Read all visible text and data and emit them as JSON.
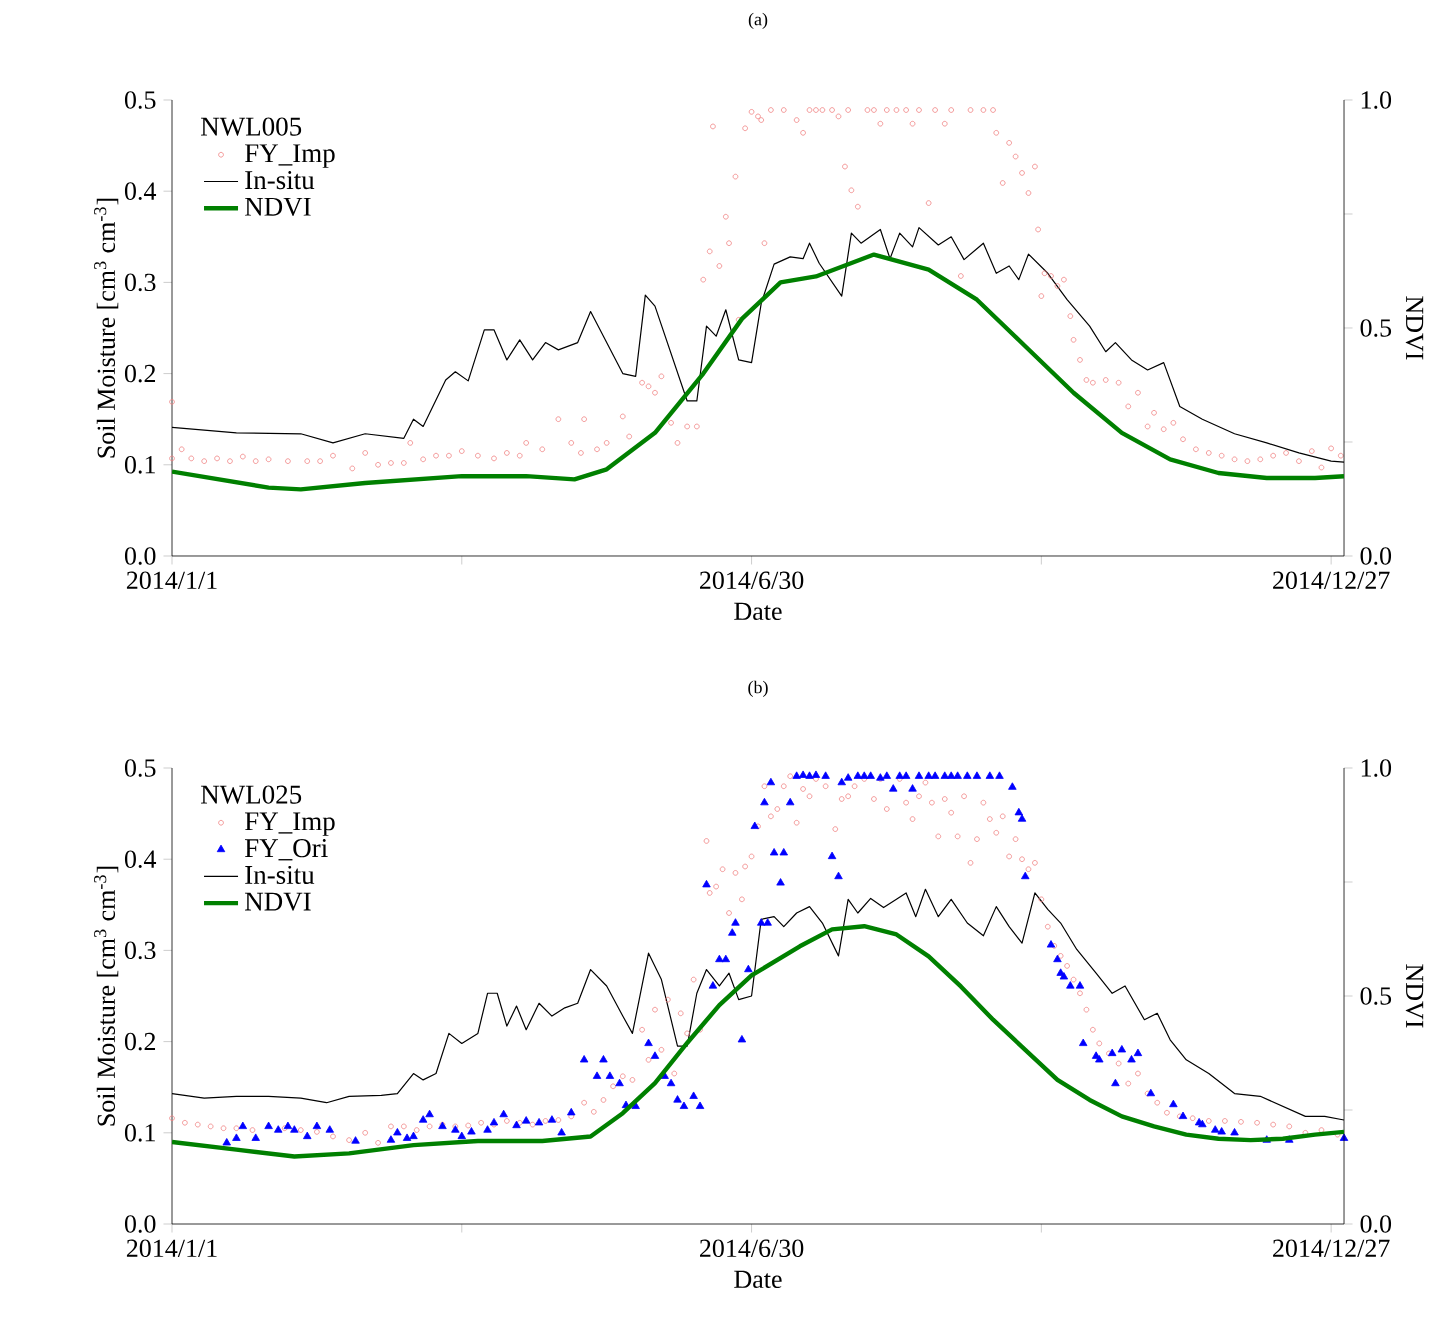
{
  "chart_data": [
    {
      "type": "line",
      "title": "(a)",
      "xlabel": "Date",
      "ylabel": "Soil Moisture [cm$^{3}$ cm$^{-3}$]",
      "y2label": "NDVI",
      "legend_title": "NWL005",
      "legend": "top left",
      "xlim": [
        "2014-01-01",
        "2014-12-31"
      ],
      "xticks": [
        {
          "value": "2014-01-01",
          "label": "2014/1/1"
        },
        {
          "value": "2014-04-01",
          "label": null
        },
        {
          "value": "2014-06-30",
          "label": "2014/6/30"
        },
        {
          "value": "2014-09-28",
          "label": null
        },
        {
          "value": "2014-12-27",
          "label": "2014/12/27"
        }
      ],
      "ylim": [
        0,
        0.5
      ],
      "yticks": [
        {
          "value": 0,
          "label": "0.0"
        },
        0.1,
        0.2,
        0.3,
        0.4,
        0.5
      ],
      "y2lim": [
        0,
        1
      ],
      "y2ticks": [
        {
          "value": 0,
          "label": "0.0"
        },
        {
          "value": 0.25,
          "label": null
        },
        0.5,
        {
          "value": 0.75,
          "label": null
        },
        {
          "value": 1,
          "label": "1.0"
        }
      ],
      "series": [
        {
          "name": "FY_Imp",
          "type": "scatter",
          "marker": "circle",
          "color": "#f08080",
          "x": [
            "2014-01-01",
            "2014-01-01",
            "2014-01-04",
            "2014-01-07",
            "2014-01-11",
            "2014-01-15",
            "2014-01-19",
            "2014-01-23",
            "2014-01-27",
            "2014-01-31",
            "2014-02-06",
            "2014-02-12",
            "2014-02-16",
            "2014-02-20",
            "2014-02-26",
            "2014-03-02",
            "2014-03-06",
            "2014-03-10",
            "2014-03-14",
            "2014-03-16",
            "2014-03-20",
            "2014-03-24",
            "2014-03-28",
            "2014-04-01",
            "2014-04-06",
            "2014-04-11",
            "2014-04-15",
            "2014-04-19",
            "2014-04-21",
            "2014-04-26",
            "2014-05-01",
            "2014-05-05",
            "2014-05-08",
            "2014-05-09",
            "2014-05-13",
            "2014-05-16",
            "2014-05-21",
            "2014-05-23",
            "2014-05-27",
            "2014-05-29",
            "2014-05-31",
            "2014-06-02",
            "2014-06-05",
            "2014-06-07",
            "2014-06-10",
            "2014-06-13",
            "2014-06-15",
            "2014-06-17",
            "2014-06-18",
            "2014-06-20",
            "2014-06-22",
            "2014-06-23",
            "2014-06-25",
            "2014-06-26",
            "2014-06-28",
            "2014-06-30",
            "2014-07-02",
            "2014-07-03",
            "2014-07-04",
            "2014-07-06",
            "2014-07-10",
            "2014-07-14",
            "2014-07-16",
            "2014-07-18",
            "2014-07-20",
            "2014-07-22",
            "2014-07-25",
            "2014-07-27",
            "2014-07-29",
            "2014-07-30",
            "2014-07-31",
            "2014-08-02",
            "2014-08-05",
            "2014-08-07",
            "2014-08-09",
            "2014-08-11",
            "2014-08-14",
            "2014-08-17",
            "2014-08-19",
            "2014-08-21",
            "2014-08-24",
            "2014-08-26",
            "2014-08-29",
            "2014-08-31",
            "2014-09-03",
            "2014-09-06",
            "2014-09-10",
            "2014-09-13",
            "2014-09-14",
            "2014-09-16",
            "2014-09-18",
            "2014-09-20",
            "2014-09-22",
            "2014-09-24",
            "2014-09-26",
            "2014-09-27",
            "2014-09-28",
            "2014-09-29",
            "2014-10-01",
            "2014-10-03",
            "2014-10-05",
            "2014-10-07",
            "2014-10-08",
            "2014-10-10",
            "2014-10-12",
            "2014-10-14",
            "2014-10-18",
            "2014-10-22",
            "2014-10-25",
            "2014-10-28",
            "2014-10-31",
            "2014-11-02",
            "2014-11-05",
            "2014-11-08",
            "2014-11-11",
            "2014-11-15",
            "2014-11-19",
            "2014-11-23",
            "2014-11-27",
            "2014-12-01",
            "2014-12-05",
            "2014-12-09",
            "2014-12-13",
            "2014-12-17",
            "2014-12-21",
            "2014-12-24",
            "2014-12-27",
            "2014-12-30"
          ],
          "values": [
            0.169,
            0.107,
            0.117,
            0.107,
            0.104,
            0.107,
            0.104,
            0.109,
            0.104,
            0.106,
            0.104,
            0.104,
            0.104,
            0.11,
            0.096,
            0.113,
            0.1,
            0.102,
            0.102,
            0.124,
            0.106,
            0.11,
            0.11,
            0.115,
            0.11,
            0.107,
            0.113,
            0.11,
            0.124,
            0.117,
            0.15,
            0.124,
            0.113,
            0.15,
            0.117,
            0.124,
            0.153,
            0.131,
            0.19,
            0.186,
            0.179,
            0.197,
            0.146,
            0.124,
            0.142,
            0.142,
            0.303,
            0.334,
            0.471,
            0.318,
            0.372,
            0.343,
            0.416,
            0.259,
            0.469,
            0.487,
            0.482,
            0.478,
            0.343,
            0.489,
            0.489,
            0.478,
            0.464,
            0.489,
            0.489,
            0.489,
            0.489,
            0.482,
            0.427,
            0.489,
            0.401,
            0.383,
            0.489,
            0.489,
            0.474,
            0.489,
            0.489,
            0.489,
            0.474,
            0.489,
            0.387,
            0.489,
            0.474,
            0.489,
            0.307,
            0.489,
            0.489,
            0.489,
            0.464,
            0.409,
            0.453,
            0.438,
            0.42,
            0.398,
            0.427,
            0.358,
            0.285,
            0.31,
            0.307,
            0.296,
            0.303,
            0.263,
            0.237,
            0.215,
            0.193,
            0.19,
            0.193,
            0.19,
            0.164,
            0.179,
            0.142,
            0.157,
            0.139,
            0.146,
            0.128,
            0.117,
            0.113,
            0.11,
            0.106,
            0.104,
            0.106,
            0.11,
            0.113,
            0.104,
            0.115,
            0.097,
            0.118,
            0.11
          ]
        },
        {
          "name": "In-situ",
          "color": "#000000",
          "x": [
            "2014-01-01",
            "2014-01-21",
            "2014-02-10",
            "2014-02-20",
            "2014-03-02",
            "2014-03-14",
            "2014-03-17",
            "2014-03-20",
            "2014-03-27",
            "2014-03-30",
            "2014-04-03",
            "2014-04-08",
            "2014-04-11",
            "2014-04-15",
            "2014-04-19",
            "2014-04-23",
            "2014-04-27",
            "2014-05-01",
            "2014-05-07",
            "2014-05-11",
            "2014-05-21",
            "2014-05-25",
            "2014-05-28",
            "2014-05-31",
            "2014-06-10",
            "2014-06-13",
            "2014-06-16",
            "2014-06-19",
            "2014-06-22",
            "2014-06-26",
            "2014-06-30",
            "2014-07-03",
            "2014-07-07",
            "2014-07-12",
            "2014-07-16",
            "2014-07-18",
            "2014-07-21",
            "2014-07-28",
            "2014-07-31",
            "2014-08-03",
            "2014-08-09",
            "2014-08-12",
            "2014-08-15",
            "2014-08-19",
            "2014-08-21",
            "2014-08-27",
            "2014-08-31",
            "2014-09-04",
            "2014-09-10",
            "2014-09-14",
            "2014-09-18",
            "2014-09-21",
            "2014-09-24",
            "2014-09-30",
            "2014-10-06",
            "2014-10-13",
            "2014-10-18",
            "2014-10-21",
            "2014-10-26",
            "2014-10-31",
            "2014-11-05",
            "2014-11-10",
            "2014-11-17",
            "2014-11-27",
            "2014-12-07",
            "2014-12-17",
            "2014-12-27",
            "2014-12-31"
          ],
          "values": [
            0.141,
            0.135,
            0.134,
            0.124,
            0.134,
            0.129,
            0.15,
            0.142,
            0.193,
            0.202,
            0.192,
            0.248,
            0.248,
            0.215,
            0.237,
            0.215,
            0.234,
            0.226,
            0.234,
            0.268,
            0.2,
            0.197,
            0.286,
            0.274,
            0.17,
            0.17,
            0.252,
            0.241,
            0.27,
            0.215,
            0.212,
            0.277,
            0.32,
            0.328,
            0.326,
            0.343,
            0.321,
            0.285,
            0.354,
            0.343,
            0.358,
            0.326,
            0.354,
            0.339,
            0.36,
            0.341,
            0.35,
            0.325,
            0.343,
            0.31,
            0.318,
            0.303,
            0.331,
            0.31,
            0.281,
            0.252,
            0.224,
            0.234,
            0.215,
            0.204,
            0.212,
            0.164,
            0.15,
            0.134,
            0.124,
            0.113,
            0.104,
            0.103
          ]
        },
        {
          "name": "NDVI",
          "axis": "y2",
          "color": "#008000",
          "x": [
            "2014-01-01",
            "2014-01-31",
            "2014-02-10",
            "2014-03-02",
            "2014-04-01",
            "2014-04-21",
            "2014-05-06",
            "2014-05-16",
            "2014-05-31",
            "2014-06-15",
            "2014-06-27",
            "2014-07-09",
            "2014-07-20",
            "2014-08-07",
            "2014-08-24",
            "2014-09-08",
            "2014-09-23",
            "2014-10-08",
            "2014-10-23",
            "2014-11-07",
            "2014-11-22",
            "2014-12-07",
            "2014-12-22",
            "2014-12-31"
          ],
          "values": [
            0.185,
            0.15,
            0.146,
            0.16,
            0.175,
            0.175,
            0.168,
            0.19,
            0.27,
            0.4,
            0.52,
            0.6,
            0.613,
            0.661,
            0.628,
            0.562,
            0.46,
            0.358,
            0.27,
            0.212,
            0.182,
            0.171,
            0.171,
            0.175
          ]
        }
      ]
    },
    {
      "type": "line",
      "title": "(b)",
      "xlabel": "Date",
      "ylabel": "Soil Moisture [cm$^{3}$ cm$^{-3}$]",
      "y2label": "NDVI",
      "legend_title": "NWL025",
      "legend": "top left",
      "xlim": [
        "2014-01-01",
        "2014-12-31"
      ],
      "xticks": [
        {
          "value": "2014-01-01",
          "label": "2014/1/1"
        },
        {
          "value": "2014-04-01",
          "label": null
        },
        {
          "value": "2014-06-30",
          "label": "2014/6/30"
        },
        {
          "value": "2014-09-28",
          "label": null
        },
        {
          "value": "2014-12-27",
          "label": "2014/12/27"
        }
      ],
      "ylim": [
        0,
        0.5
      ],
      "yticks": [
        {
          "value": 0,
          "label": "0.0"
        },
        0.1,
        0.2,
        0.3,
        0.4,
        0.5
      ],
      "y2lim": [
        0,
        1
      ],
      "y2ticks": [
        {
          "value": 0,
          "label": "0.0"
        },
        {
          "value": 0.25,
          "label": null
        },
        0.5,
        {
          "value": 0.75,
          "label": null
        },
        {
          "value": 1,
          "label": "1.0"
        }
      ],
      "series": [
        {
          "name": "FY_Imp",
          "type": "scatter",
          "marker": "circle",
          "color": "#f08080",
          "x": [
            "2014-01-01",
            "2014-01-05",
            "2014-01-09",
            "2014-01-13",
            "2014-01-17",
            "2014-01-21",
            "2014-01-26",
            "2014-01-31",
            "2014-02-05",
            "2014-02-10",
            "2014-02-15",
            "2014-02-20",
            "2014-02-25",
            "2014-03-02",
            "2014-03-06",
            "2014-03-10",
            "2014-03-14",
            "2014-03-18",
            "2014-03-22",
            "2014-03-26",
            "2014-03-30",
            "2014-04-03",
            "2014-04-07",
            "2014-04-11",
            "2014-04-15",
            "2014-04-19",
            "2014-04-23",
            "2014-04-27",
            "2014-05-01",
            "2014-05-05",
            "2014-05-09",
            "2014-05-12",
            "2014-05-15",
            "2014-05-18",
            "2014-05-21",
            "2014-05-24",
            "2014-05-27",
            "2014-05-29",
            "2014-05-31",
            "2014-06-02",
            "2014-06-04",
            "2014-06-06",
            "2014-06-08",
            "2014-06-10",
            "2014-06-12",
            "2014-06-14",
            "2014-06-16",
            "2014-06-17",
            "2014-06-19",
            "2014-06-21",
            "2014-06-23",
            "2014-06-25",
            "2014-06-27",
            "2014-06-28",
            "2014-06-30",
            "2014-07-02",
            "2014-07-04",
            "2014-07-06",
            "2014-07-08",
            "2014-07-10",
            "2014-07-12",
            "2014-07-14",
            "2014-07-16",
            "2014-07-18",
            "2014-07-20",
            "2014-07-23",
            "2014-07-26",
            "2014-07-28",
            "2014-07-30",
            "2014-08-01",
            "2014-08-04",
            "2014-08-07",
            "2014-08-09",
            "2014-08-11",
            "2014-08-13",
            "2014-08-15",
            "2014-08-17",
            "2014-08-19",
            "2014-08-21",
            "2014-08-23",
            "2014-08-25",
            "2014-08-27",
            "2014-08-29",
            "2014-08-31",
            "2014-09-02",
            "2014-09-04",
            "2014-09-06",
            "2014-09-08",
            "2014-09-10",
            "2014-09-12",
            "2014-09-14",
            "2014-09-16",
            "2014-09-18",
            "2014-09-20",
            "2014-09-22",
            "2014-09-24",
            "2014-09-26",
            "2014-09-28",
            "2014-09-30",
            "2014-10-02",
            "2014-10-04",
            "2014-10-06",
            "2014-10-08",
            "2014-10-10",
            "2014-10-12",
            "2014-10-14",
            "2014-10-16",
            "2014-10-19",
            "2014-10-22",
            "2014-10-25",
            "2014-10-28",
            "2014-10-31",
            "2014-11-03",
            "2014-11-06",
            "2014-11-10",
            "2014-11-14",
            "2014-11-19",
            "2014-11-24",
            "2014-11-29",
            "2014-12-04",
            "2014-12-09",
            "2014-12-14",
            "2014-12-19",
            "2014-12-24",
            "2014-12-29"
          ],
          "values": [
            0.116,
            0.111,
            0.109,
            0.107,
            0.105,
            0.105,
            0.103,
            null,
            0.105,
            0.103,
            0.101,
            0.096,
            0.092,
            0.1,
            0.089,
            0.107,
            0.107,
            0.103,
            0.107,
            0.109,
            0.107,
            0.108,
            0.111,
            0.109,
            0.113,
            0.111,
            0.109,
            0.113,
            0.114,
            0.118,
            0.133,
            0.123,
            0.136,
            0.151,
            0.162,
            0.158,
            0.213,
            0.18,
            0.235,
            0.191,
            0.246,
            0.165,
            0.231,
            0.209,
            0.268,
            0.213,
            0.42,
            0.363,
            0.37,
            0.389,
            0.341,
            0.385,
            0.356,
            0.392,
            0.403,
            0.436,
            0.48,
            0.447,
            0.455,
            0.48,
            0.491,
            0.44,
            0.477,
            0.469,
            0.488,
            0.48,
            0.433,
            0.466,
            0.469,
            0.48,
            0.488,
            0.466,
            0.488,
            0.455,
            null,
            0.488,
            0.462,
            0.444,
            0.469,
            0.484,
            0.462,
            0.425,
            0.466,
            0.451,
            0.425,
            0.469,
            0.396,
            0.422,
            0.462,
            0.444,
            0.429,
            0.447,
            0.403,
            0.422,
            0.4,
            0.389,
            0.396,
            0.356,
            0.326,
            0.305,
            0.294,
            0.283,
            0.268,
            0.253,
            0.235,
            0.213,
            0.198,
            0.187,
            0.176,
            0.154,
            0.165,
            0.143,
            0.133,
            0.122,
            0.118,
            0.116,
            0.113,
            0.113,
            0.112,
            0.111,
            0.109,
            0.107,
            0.1,
            0.103,
            0.098
          ]
        },
        {
          "name": "FY_Ori",
          "type": "scatter",
          "marker": "triangle",
          "color": "#0000ff",
          "x": [
            "2014-01-18",
            "2014-01-21",
            "2014-01-23",
            "2014-01-27",
            "2014-01-31",
            "2014-02-03",
            "2014-02-06",
            "2014-02-08",
            "2014-02-12",
            "2014-02-15",
            "2014-02-19",
            "2014-02-27",
            "2014-03-10",
            "2014-03-12",
            "2014-03-15",
            "2014-03-17",
            "2014-03-20",
            "2014-03-22",
            "2014-03-26",
            "2014-03-30",
            "2014-04-01",
            "2014-04-04",
            "2014-04-09",
            "2014-04-11",
            "2014-04-14",
            "2014-04-18",
            "2014-04-21",
            "2014-04-25",
            "2014-04-29",
            "2014-05-02",
            "2014-05-05",
            "2014-05-09",
            "2014-05-13",
            "2014-05-15",
            "2014-05-17",
            "2014-05-20",
            "2014-05-22",
            "2014-05-25",
            "2014-05-29",
            "2014-05-31",
            "2014-06-03",
            "2014-06-05",
            "2014-06-07",
            "2014-06-09",
            "2014-06-12",
            "2014-06-14",
            "2014-06-16",
            "2014-06-18",
            "2014-06-20",
            "2014-06-22",
            "2014-06-24",
            "2014-06-25",
            "2014-06-27",
            "2014-06-29",
            "2014-07-01",
            "2014-07-03",
            "2014-07-04",
            "2014-07-05",
            "2014-07-06",
            "2014-07-07",
            "2014-07-09",
            "2014-07-10",
            "2014-07-12",
            "2014-07-14",
            "2014-07-16",
            "2014-07-18",
            "2014-07-20",
            "2014-07-23",
            "2014-07-25",
            "2014-07-27",
            "2014-07-28",
            "2014-07-30",
            "2014-08-02",
            "2014-08-04",
            "2014-08-06",
            "2014-08-09",
            "2014-08-11",
            "2014-08-13",
            "2014-08-15",
            "2014-08-17",
            "2014-08-19",
            "2014-08-21",
            "2014-08-24",
            "2014-08-26",
            "2014-08-29",
            "2014-08-31",
            "2014-09-02",
            "2014-09-05",
            "2014-09-08",
            "2014-09-12",
            "2014-09-15",
            "2014-09-19",
            "2014-09-21",
            "2014-09-22",
            "2014-09-23",
            "2014-10-01",
            "2014-10-03",
            "2014-10-04",
            "2014-10-05",
            "2014-10-07",
            "2014-10-10",
            "2014-10-11",
            "2014-10-15",
            "2014-10-16",
            "2014-10-20",
            "2014-10-21",
            "2014-10-23",
            "2014-10-26",
            "2014-10-28",
            "2014-11-01",
            "2014-11-08",
            "2014-11-11",
            "2014-11-16",
            "2014-11-17",
            "2014-11-21",
            "2014-11-23",
            "2014-11-27",
            "2014-12-07",
            "2014-12-14",
            "2014-12-31"
          ],
          "values": [
            0.089,
            0.094,
            0.107,
            0.094,
            0.107,
            0.103,
            0.107,
            0.103,
            0.096,
            0.107,
            0.103,
            0.091,
            0.092,
            0.1,
            0.094,
            0.096,
            0.114,
            0.12,
            0.107,
            0.103,
            0.096,
            0.101,
            0.103,
            0.111,
            0.12,
            0.108,
            0.113,
            0.111,
            0.114,
            0.1,
            0.122,
            0.18,
            0.162,
            0.18,
            0.162,
            0.154,
            0.13,
            0.129,
            0.198,
            0.184,
            0.162,
            0.154,
            0.136,
            0.129,
            0.14,
            0.129,
            0.372,
            0.261,
            0.29,
            0.29,
            0.319,
            0.33,
            0.202,
            0.279,
            0.436,
            0.33,
            0.462,
            0.33,
            0.484,
            0.407,
            0.374,
            0.407,
            0.462,
            0.491,
            0.492,
            0.491,
            0.492,
            0.491,
            0.403,
            0.381,
            0.484,
            0.489,
            0.491,
            0.491,
            0.491,
            0.489,
            0.491,
            0.477,
            0.491,
            0.491,
            0.477,
            0.491,
            0.491,
            0.491,
            0.491,
            0.491,
            0.491,
            0.491,
            0.491,
            0.491,
            0.491,
            0.479,
            0.451,
            0.444,
            0.381,
            0.306,
            0.29,
            0.275,
            0.271,
            0.261,
            0.261,
            0.198,
            0.184,
            0.18,
            0.187,
            0.154,
            0.191,
            0.18,
            0.187,
            0.143,
            0.131,
            0.118,
            0.111,
            0.109,
            0.103,
            0.101,
            0.1,
            0.092,
            0.092,
            0.094
          ]
        },
        {
          "name": "In-situ",
          "color": "#000000",
          "x": [
            "2014-01-01",
            "2014-01-11",
            "2014-01-21",
            "2014-01-31",
            "2014-02-10",
            "2014-02-18",
            "2014-02-25",
            "2014-03-07",
            "2014-03-12",
            "2014-03-17",
            "2014-03-20",
            "2014-03-24",
            "2014-03-28",
            "2014-04-01",
            "2014-04-06",
            "2014-04-09",
            "2014-04-12",
            "2014-04-15",
            "2014-04-18",
            "2014-04-21",
            "2014-04-25",
            "2014-04-29",
            "2014-05-03",
            "2014-05-07",
            "2014-05-11",
            "2014-05-16",
            "2014-05-21",
            "2014-05-24",
            "2014-05-29",
            "2014-06-02",
            "2014-06-07",
            "2014-06-10",
            "2014-06-13",
            "2014-06-16",
            "2014-06-20",
            "2014-06-23",
            "2014-06-26",
            "2014-06-30",
            "2014-07-03",
            "2014-07-07",
            "2014-07-10",
            "2014-07-14",
            "2014-07-18",
            "2014-07-22",
            "2014-07-27",
            "2014-07-30",
            "2014-08-02",
            "2014-08-06",
            "2014-08-10",
            "2014-08-14",
            "2014-08-17",
            "2014-08-20",
            "2014-08-23",
            "2014-08-27",
            "2014-08-31",
            "2014-09-05",
            "2014-09-10",
            "2014-09-14",
            "2014-09-18",
            "2014-09-22",
            "2014-09-26",
            "2014-09-30",
            "2014-10-04",
            "2014-10-09",
            "2014-10-15",
            "2014-10-20",
            "2014-10-24",
            "2014-10-30",
            "2014-11-03",
            "2014-11-07",
            "2014-11-12",
            "2014-11-19",
            "2014-11-27",
            "2014-12-05",
            "2014-12-12",
            "2014-12-19",
            "2014-12-25",
            "2014-12-31"
          ],
          "values": [
            0.143,
            0.138,
            0.14,
            0.14,
            0.138,
            0.133,
            0.14,
            0.141,
            0.143,
            0.165,
            0.158,
            0.165,
            0.209,
            0.198,
            0.209,
            0.253,
            0.253,
            0.217,
            0.239,
            0.213,
            0.242,
            0.228,
            0.237,
            0.242,
            0.279,
            0.261,
            0.228,
            0.209,
            0.297,
            0.268,
            0.195,
            0.195,
            0.253,
            0.279,
            0.261,
            0.275,
            0.246,
            0.25,
            0.334,
            0.337,
            0.326,
            0.341,
            0.348,
            0.33,
            0.294,
            0.356,
            0.341,
            0.357,
            0.347,
            0.356,
            0.363,
            0.337,
            0.367,
            0.337,
            0.356,
            0.33,
            0.316,
            0.348,
            0.326,
            0.308,
            0.363,
            0.345,
            0.33,
            0.301,
            0.275,
            0.253,
            0.261,
            0.224,
            0.231,
            0.202,
            0.18,
            0.165,
            0.143,
            0.14,
            0.129,
            0.118,
            0.118,
            0.114
          ]
        },
        {
          "name": "NDVI",
          "axis": "y2",
          "color": "#008000",
          "x": [
            "2014-01-01",
            "2014-01-21",
            "2014-02-08",
            "2014-02-25",
            "2014-03-17",
            "2014-04-06",
            "2014-04-26",
            "2014-05-11",
            "2014-05-21",
            "2014-05-31",
            "2014-06-10",
            "2014-06-20",
            "2014-06-30",
            "2014-07-15",
            "2014-07-25",
            "2014-08-04",
            "2014-08-14",
            "2014-08-24",
            "2014-09-03",
            "2014-09-13",
            "2014-09-23",
            "2014-10-03",
            "2014-10-13",
            "2014-10-23",
            "2014-11-02",
            "2014-11-12",
            "2014-11-22",
            "2014-12-02",
            "2014-12-12",
            "2014-12-22",
            "2014-12-31"
          ],
          "values": [
            0.18,
            0.163,
            0.148,
            0.155,
            0.173,
            0.182,
            0.182,
            0.192,
            0.243,
            0.309,
            0.397,
            0.48,
            0.545,
            0.609,
            0.646,
            0.653,
            0.635,
            0.587,
            0.521,
            0.448,
            0.382,
            0.316,
            0.272,
            0.236,
            0.214,
            0.196,
            0.187,
            0.184,
            0.187,
            0.196,
            0.202
          ]
        }
      ]
    }
  ]
}
